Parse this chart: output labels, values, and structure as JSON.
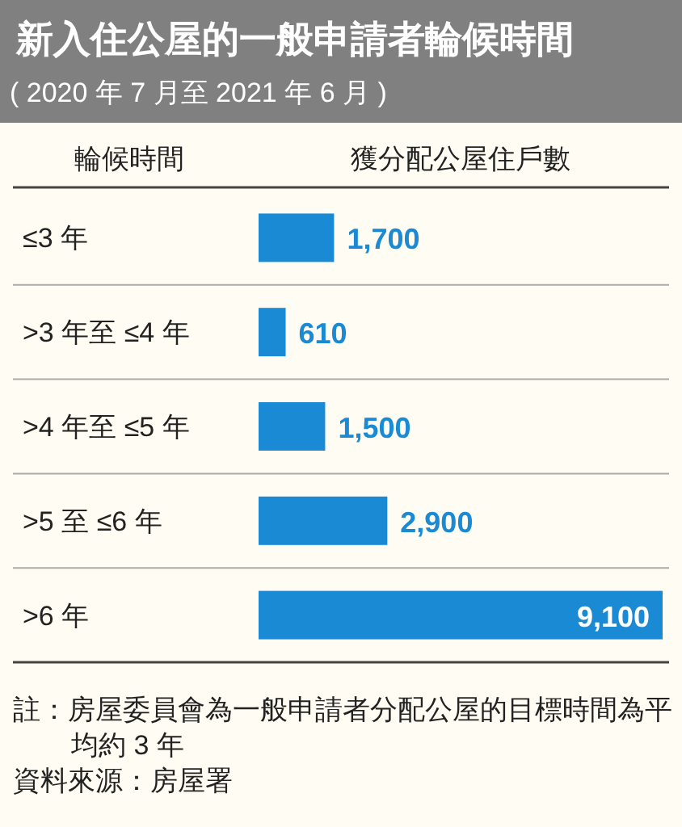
{
  "chart_data": {
    "type": "bar",
    "orientation": "horizontal",
    "title": "新入住公屋的一般申請者輪候時間",
    "subtitle": "( 2020 年 7 月至 2021 年 6 月 )",
    "ylabel": "輪候時間",
    "xlabel": "獲分配公屋住戶數",
    "categories": [
      "≤3 年",
      ">3 年至 ≤4 年",
      ">4 年至 ≤5 年",
      ">5 至 ≤6 年",
      ">6 年"
    ],
    "values": [
      1700,
      610,
      1500,
      2900,
      9100
    ],
    "value_labels": [
      "1,700",
      "610",
      "1,500",
      "2,900",
      "9,100"
    ],
    "color": "#1a8ad4",
    "annotations": [
      "註：房屋委員會為一般申請者分配公屋的目標時間為平均約 3 年",
      "資料來源：房屋署"
    ]
  }
}
